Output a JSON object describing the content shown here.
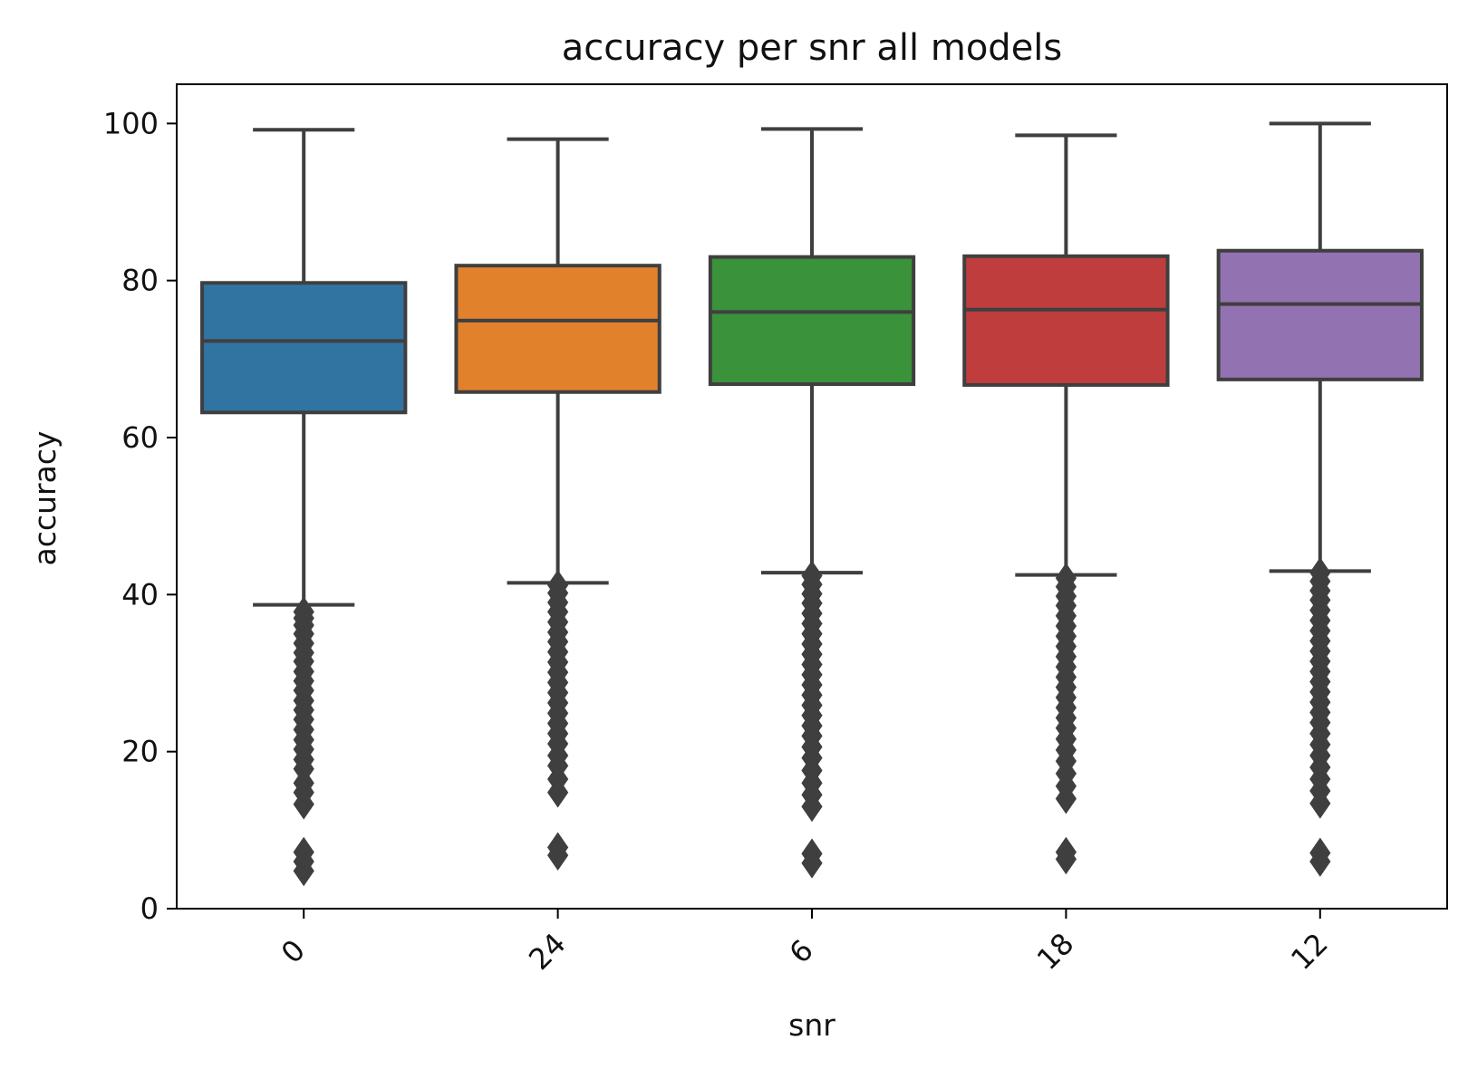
{
  "chart_data": {
    "type": "box",
    "title": "accuracy per snr all models",
    "xlabel": "snr",
    "ylabel": "accuracy",
    "ylim": [
      0,
      105
    ],
    "yticks": [
      0,
      20,
      40,
      60,
      80,
      100
    ],
    "grid": false,
    "categories": [
      "0",
      "24",
      "6",
      "18",
      "12"
    ],
    "boxes": [
      {
        "category": "0",
        "color": "#3274a1",
        "whisker_low": 38.7,
        "q1": 63.2,
        "median": 72.3,
        "q3": 79.7,
        "whisker_high": 99.2,
        "outliers": [
          37.8,
          37.0,
          36.1,
          35.0,
          33.8,
          32.6,
          31.5,
          30.2,
          29.0,
          27.8,
          26.5,
          25.3,
          24.1,
          22.8,
          21.5,
          20.3,
          19.0,
          17.8,
          16.0,
          14.8,
          13.3,
          7.2,
          6.0,
          4.8
        ]
      },
      {
        "category": "24",
        "color": "#e1812c",
        "whisker_low": 41.5,
        "q1": 65.8,
        "median": 74.9,
        "q3": 81.9,
        "whisker_high": 98.0,
        "outliers": [
          41.2,
          40.2,
          39.0,
          37.8,
          36.5,
          35.2,
          34.0,
          32.7,
          31.4,
          30.1,
          28.8,
          27.5,
          26.2,
          24.9,
          23.6,
          22.3,
          21.0,
          19.5,
          18.2,
          16.5,
          14.8,
          7.8,
          6.8
        ]
      },
      {
        "category": "6",
        "color": "#3a923a",
        "whisker_low": 42.8,
        "q1": 66.8,
        "median": 76.0,
        "q3": 83.0,
        "whisker_high": 99.3,
        "outliers": [
          42.4,
          41.3,
          40.1,
          38.9,
          37.6,
          36.3,
          35.0,
          33.7,
          32.4,
          31.1,
          29.8,
          28.5,
          27.2,
          25.9,
          24.6,
          23.3,
          22.0,
          20.6,
          19.2,
          17.6,
          16.0,
          14.5,
          13.0,
          7.0,
          5.8
        ]
      },
      {
        "category": "18",
        "color": "#c03d3e",
        "whisker_low": 42.5,
        "q1": 66.7,
        "median": 76.3,
        "q3": 83.1,
        "whisker_high": 98.5,
        "outliers": [
          42.1,
          41.0,
          39.8,
          38.6,
          37.3,
          36.0,
          34.7,
          33.4,
          32.1,
          30.8,
          29.5,
          28.2,
          26.9,
          25.6,
          24.3,
          23.0,
          21.6,
          20.2,
          18.8,
          17.2,
          15.6,
          14.0,
          7.2,
          6.3
        ]
      },
      {
        "category": "12",
        "color": "#9372b2",
        "whisker_low": 43.0,
        "q1": 67.4,
        "median": 77.0,
        "q3": 83.8,
        "whisker_high": 100.0,
        "outliers": [
          42.8,
          41.7,
          40.5,
          39.3,
          38.0,
          36.7,
          35.4,
          34.1,
          32.8,
          31.5,
          30.2,
          28.9,
          27.6,
          26.3,
          25.0,
          23.7,
          22.3,
          20.9,
          19.5,
          18.0,
          16.5,
          15.0,
          13.4,
          7.1,
          6.0
        ]
      }
    ],
    "line_color": "#3f3f3f"
  }
}
